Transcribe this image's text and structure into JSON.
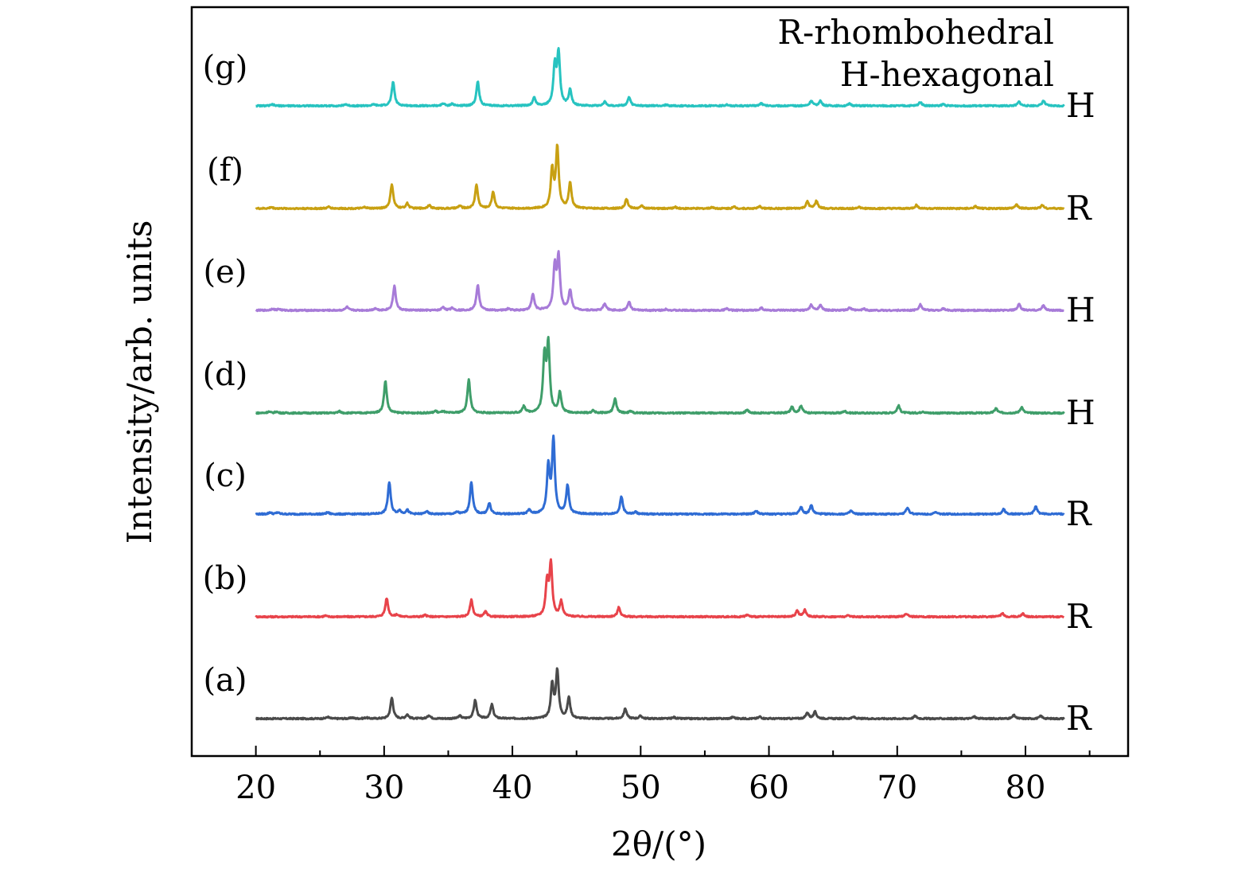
{
  "chart_data": {
    "type": "line",
    "xlabel": "2θ/(°)",
    "ylabel": "Intensity/arb. units",
    "xlim": [
      15,
      88
    ],
    "xticks": [
      20,
      30,
      40,
      50,
      60,
      70,
      80
    ],
    "x_range": [
      20,
      83
    ],
    "grid": false,
    "legend_lines": [
      "R-rhombohedral",
      "H-hexagonal"
    ],
    "series": [
      {
        "label": "(a)",
        "phase": "R",
        "color": "#4a4a4a",
        "offset": 0,
        "peaks": [
          [
            25.6,
            0.05
          ],
          [
            27.5,
            0.03
          ],
          [
            28.6,
            0.03
          ],
          [
            30.6,
            0.62
          ],
          [
            31.8,
            0.12
          ],
          [
            33.5,
            0.1
          ],
          [
            35.9,
            0.08
          ],
          [
            37.1,
            0.55
          ],
          [
            38.4,
            0.42
          ],
          [
            43.1,
            1.0
          ],
          [
            43.5,
            1.4
          ],
          [
            44.4,
            0.62
          ],
          [
            48.8,
            0.3
          ],
          [
            50.0,
            0.08
          ],
          [
            52.6,
            0.04
          ],
          [
            57.2,
            0.05
          ],
          [
            59.3,
            0.06
          ],
          [
            63.0,
            0.18
          ],
          [
            63.6,
            0.2
          ],
          [
            66.6,
            0.05
          ],
          [
            71.4,
            0.08
          ],
          [
            76.0,
            0.06
          ],
          [
            79.1,
            0.1
          ],
          [
            81.2,
            0.08
          ]
        ]
      },
      {
        "label": "(b)",
        "phase": "R",
        "color": "#e8434a",
        "offset": 1,
        "peaks": [
          [
            25.4,
            0.03
          ],
          [
            30.2,
            0.55
          ],
          [
            31.0,
            0.06
          ],
          [
            33.2,
            0.05
          ],
          [
            36.8,
            0.5
          ],
          [
            37.9,
            0.15
          ],
          [
            42.7,
            1.0
          ],
          [
            43.0,
            1.55
          ],
          [
            43.8,
            0.45
          ],
          [
            48.3,
            0.28
          ],
          [
            58.3,
            0.06
          ],
          [
            62.2,
            0.18
          ],
          [
            62.8,
            0.2
          ],
          [
            66.2,
            0.04
          ],
          [
            70.7,
            0.1
          ],
          [
            78.2,
            0.1
          ],
          [
            79.8,
            0.1
          ]
        ]
      },
      {
        "label": "(c)",
        "phase": "R",
        "color": "#2f6cd4",
        "offset": 2,
        "peaks": [
          [
            21.1,
            0.05
          ],
          [
            21.7,
            0.05
          ],
          [
            25.6,
            0.05
          ],
          [
            30.4,
            0.95
          ],
          [
            31.2,
            0.1
          ],
          [
            31.8,
            0.12
          ],
          [
            33.3,
            0.08
          ],
          [
            35.7,
            0.06
          ],
          [
            36.8,
            0.95
          ],
          [
            38.2,
            0.32
          ],
          [
            41.3,
            0.12
          ],
          [
            42.8,
            1.4
          ],
          [
            43.2,
            2.2
          ],
          [
            44.3,
            0.85
          ],
          [
            48.5,
            0.52
          ],
          [
            49.6,
            0.06
          ],
          [
            59.0,
            0.1
          ],
          [
            62.5,
            0.22
          ],
          [
            63.3,
            0.26
          ],
          [
            66.4,
            0.1
          ],
          [
            70.8,
            0.2
          ],
          [
            73.0,
            0.05
          ],
          [
            78.3,
            0.15
          ],
          [
            80.8,
            0.22
          ]
        ]
      },
      {
        "label": "(d)",
        "phase": "H",
        "color": "#3f9e6a",
        "offset": 3,
        "peaks": [
          [
            21.0,
            0.04
          ],
          [
            21.6,
            0.04
          ],
          [
            26.5,
            0.05
          ],
          [
            30.1,
            0.95
          ],
          [
            34.0,
            0.06
          ],
          [
            34.6,
            0.05
          ],
          [
            36.6,
            1.0
          ],
          [
            40.9,
            0.2
          ],
          [
            42.5,
            1.65
          ],
          [
            42.8,
            2.0
          ],
          [
            43.7,
            0.6
          ],
          [
            46.3,
            0.07
          ],
          [
            48.0,
            0.42
          ],
          [
            49.2,
            0.05
          ],
          [
            58.3,
            0.1
          ],
          [
            61.8,
            0.18
          ],
          [
            62.5,
            0.22
          ],
          [
            65.9,
            0.06
          ],
          [
            70.1,
            0.22
          ],
          [
            72.0,
            0.05
          ],
          [
            77.7,
            0.14
          ],
          [
            79.7,
            0.18
          ]
        ]
      },
      {
        "label": "(e)",
        "phase": "H",
        "color": "#a77bd8",
        "offset": 4,
        "peaks": [
          [
            21.3,
            0.05
          ],
          [
            21.8,
            0.04
          ],
          [
            27.1,
            0.1
          ],
          [
            29.3,
            0.06
          ],
          [
            30.8,
            0.72
          ],
          [
            34.6,
            0.1
          ],
          [
            35.3,
            0.08
          ],
          [
            37.3,
            0.75
          ],
          [
            39.7,
            0.05
          ],
          [
            41.6,
            0.48
          ],
          [
            43.3,
            1.25
          ],
          [
            43.6,
            1.55
          ],
          [
            44.5,
            0.6
          ],
          [
            47.2,
            0.2
          ],
          [
            49.1,
            0.25
          ],
          [
            52.0,
            0.04
          ],
          [
            56.7,
            0.06
          ],
          [
            59.4,
            0.08
          ],
          [
            63.3,
            0.16
          ],
          [
            64.0,
            0.16
          ],
          [
            66.3,
            0.08
          ],
          [
            67.4,
            0.05
          ],
          [
            71.8,
            0.18
          ],
          [
            73.6,
            0.05
          ],
          [
            79.5,
            0.18
          ],
          [
            81.4,
            0.15
          ]
        ]
      },
      {
        "label": "(f)",
        "phase": "R",
        "color": "#c8a012",
        "offset": 5,
        "peaks": [
          [
            21.2,
            0.04
          ],
          [
            25.7,
            0.05
          ],
          [
            28.5,
            0.04
          ],
          [
            30.6,
            0.72
          ],
          [
            31.8,
            0.15
          ],
          [
            33.5,
            0.1
          ],
          [
            35.9,
            0.08
          ],
          [
            37.2,
            0.7
          ],
          [
            38.5,
            0.5
          ],
          [
            43.1,
            1.15
          ],
          [
            43.5,
            1.8
          ],
          [
            44.5,
            0.75
          ],
          [
            48.9,
            0.28
          ],
          [
            50.1,
            0.08
          ],
          [
            52.7,
            0.04
          ],
          [
            55.6,
            0.04
          ],
          [
            57.3,
            0.05
          ],
          [
            59.3,
            0.06
          ],
          [
            63.0,
            0.2
          ],
          [
            63.7,
            0.22
          ],
          [
            67.0,
            0.05
          ],
          [
            71.5,
            0.1
          ],
          [
            76.1,
            0.06
          ],
          [
            79.3,
            0.12
          ],
          [
            81.3,
            0.1
          ]
        ]
      },
      {
        "label": "(g)",
        "phase": "H",
        "color": "#27c3c0",
        "offset": 6,
        "peaks": [
          [
            21.3,
            0.04
          ],
          [
            27.0,
            0.05
          ],
          [
            29.2,
            0.04
          ],
          [
            30.7,
            0.72
          ],
          [
            34.6,
            0.07
          ],
          [
            35.3,
            0.06
          ],
          [
            37.3,
            0.72
          ],
          [
            41.7,
            0.24
          ],
          [
            43.3,
            1.15
          ],
          [
            43.6,
            1.55
          ],
          [
            44.5,
            0.48
          ],
          [
            47.2,
            0.12
          ],
          [
            49.1,
            0.25
          ],
          [
            52.0,
            0.03
          ],
          [
            56.7,
            0.04
          ],
          [
            59.4,
            0.08
          ],
          [
            63.3,
            0.15
          ],
          [
            64.0,
            0.15
          ],
          [
            66.3,
            0.06
          ],
          [
            71.8,
            0.12
          ],
          [
            73.6,
            0.05
          ],
          [
            79.5,
            0.12
          ],
          [
            81.4,
            0.15
          ]
        ]
      }
    ]
  }
}
